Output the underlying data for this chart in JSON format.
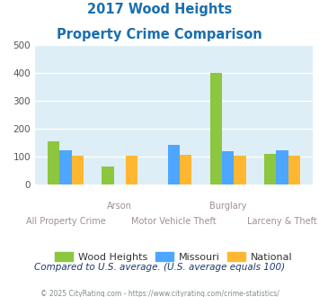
{
  "title_line1": "2017 Wood Heights",
  "title_line2": "Property Crime Comparison",
  "title_color": "#1a6faf",
  "categories": [
    "All Property Crime",
    "Arson",
    "Motor Vehicle Theft",
    "Burglary",
    "Larceny & Theft"
  ],
  "top_xlabels": {
    "1": "Arson",
    "3": "Burglary"
  },
  "bottom_xlabels": {
    "0": "All Property Crime",
    "2": "Motor Vehicle Theft",
    "4": "Larceny & Theft"
  },
  "wood_heights": [
    155,
    62,
    0,
    400,
    107
  ],
  "missouri": [
    122,
    0,
    140,
    117,
    120
  ],
  "national": [
    102,
    103,
    104,
    103,
    103
  ],
  "colors": {
    "wood_heights": "#8dc63f",
    "missouri": "#4da6ff",
    "national": "#ffb732"
  },
  "ylim": [
    0,
    500
  ],
  "yticks": [
    0,
    100,
    200,
    300,
    400,
    500
  ],
  "bar_width": 0.22,
  "bg_color": "#ddeef6",
  "grid_color": "#ffffff",
  "footer_text": "© 2025 CityRating.com - https://www.cityrating.com/crime-statistics/",
  "note_text": "Compared to U.S. average. (U.S. average equals 100)",
  "note_color": "#1a3a6b",
  "footer_color": "#7f8c8d",
  "x_label_color": "#a09090",
  "legend_labels": [
    "Wood Heights",
    "Missouri",
    "National"
  ]
}
